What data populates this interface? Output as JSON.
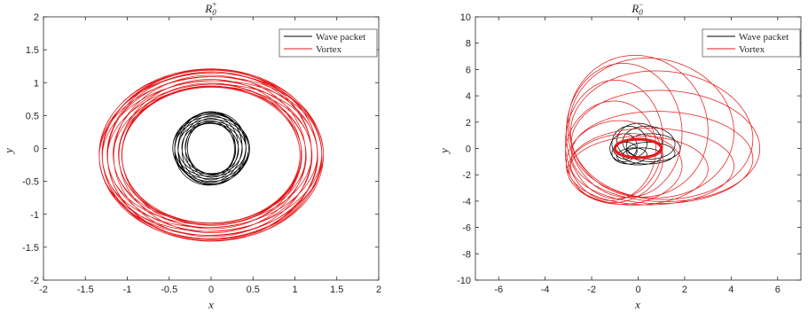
{
  "chart_data": [
    {
      "type": "line",
      "title": "R",
      "title_sub": "0",
      "title_sup": "+",
      "xlabel": "x",
      "ylabel": "y",
      "xlim": [
        -2,
        2
      ],
      "ylim": [
        -2,
        2
      ],
      "xticks": [
        -2,
        -1.5,
        -1,
        -0.5,
        0,
        0.5,
        1,
        1.5,
        2
      ],
      "xtick_labels": [
        "-2",
        "-1.5",
        "-1",
        "-0.5",
        "0",
        "0.5",
        "1",
        "1.5",
        "2"
      ],
      "yticks": [
        -2,
        -1.5,
        -1,
        -0.5,
        0,
        0.5,
        1,
        1.5,
        2
      ],
      "ytick_labels": [
        "-2",
        "-1.5",
        "-1",
        "-0.5",
        "0",
        "0.5",
        "1",
        "1.5",
        "2"
      ],
      "grid": false,
      "legend_position": "top-right",
      "series": [
        {
          "name": "Wave packet",
          "color": "#000000",
          "pattern": "precessing-ellipse",
          "center": [
            0,
            0
          ],
          "radius": [
            0.37,
            0.47
          ],
          "wobble": 0.09,
          "count": 14,
          "rot_scale": 0
        },
        {
          "name": "Vortex",
          "color": "#e41a1c",
          "pattern": "precessing-ellipse",
          "center": [
            0,
            -0.1
          ],
          "radius": [
            1.2,
            1.17
          ],
          "wobble": 0.14,
          "count": 22,
          "rot_scale": 0
        }
      ]
    },
    {
      "type": "line",
      "title": "R",
      "title_sub": "0",
      "title_sup": "−",
      "xlabel": "x",
      "ylabel": "y",
      "xlim": [
        -7,
        7
      ],
      "ylim": [
        -10,
        10
      ],
      "xticks": [
        -6,
        -4,
        -2,
        0,
        2,
        4,
        6
      ],
      "xtick_labels": [
        "-6",
        "-4",
        "-2",
        "0",
        "2",
        "4",
        "6"
      ],
      "yticks": [
        -10,
        -8,
        -6,
        -4,
        -2,
        0,
        2,
        4,
        6,
        8,
        10
      ],
      "ytick_labels": [
        "-10",
        "-8",
        "-6",
        "-4",
        "-2",
        "0",
        "2",
        "4",
        "6",
        "8",
        "10"
      ],
      "grid": false,
      "legend_position": "top-right",
      "series": [
        {
          "name": "Wave packet",
          "color": "#000000",
          "pattern": "epicycle",
          "center": [
            0,
            0
          ],
          "orbit": [
            1.2,
            1.15
          ],
          "loop": [
            0.85,
            0.95
          ],
          "count": 9
        },
        {
          "name": "Vortex",
          "color": "#e41a1c",
          "pattern": "epicycle",
          "center": [
            0,
            0
          ],
          "orbit": [
            2.15,
            3.1
          ],
          "loop": [
            3.0,
            4.0
          ],
          "count": 12
        }
      ]
    }
  ]
}
